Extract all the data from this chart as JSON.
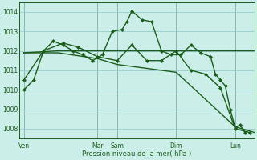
{
  "background_color": "#cceee8",
  "grid_color": "#99cccc",
  "line_color": "#1a5c1a",
  "xlabel": "Pression niveau de la mer( hPa )",
  "ylim": [
    1007.5,
    1014.5
  ],
  "yticks": [
    1008,
    1009,
    1010,
    1011,
    1012,
    1013,
    1014
  ],
  "xlim": [
    0,
    24
  ],
  "day_labels": [
    "Ven",
    "",
    "Mar",
    "Sam",
    "",
    "Dim",
    "",
    "Lun"
  ],
  "day_positions": [
    0.5,
    4,
    8,
    10,
    13,
    16,
    19,
    22
  ],
  "vline_positions": [
    0.5,
    8,
    10,
    16,
    22
  ],
  "series": [
    {
      "x": [
        0.5,
        1.5,
        2.5,
        3.5,
        4.5,
        5.5,
        6.5,
        7.5,
        8.5,
        9.5,
        10.5,
        11.0,
        11.5,
        12.5,
        13.5,
        14.5,
        15.5,
        16.5,
        17.5,
        18.5,
        19.5,
        20.0,
        20.5,
        21.0,
        21.5,
        22.0,
        22.5,
        23.0
      ],
      "y": [
        1010.0,
        1010.5,
        1012.0,
        1012.5,
        1012.3,
        1012.0,
        1011.8,
        1011.5,
        1011.8,
        1013.0,
        1013.1,
        1013.5,
        1014.05,
        1013.6,
        1013.5,
        1012.0,
        1011.8,
        1011.8,
        1012.3,
        1011.9,
        1011.7,
        1010.8,
        1010.5,
        1010.2,
        1009.0,
        1008.05,
        1008.2,
        1007.8
      ],
      "has_markers": true,
      "lw": 1.0
    },
    {
      "x": [
        0.5,
        4.0,
        8.0,
        10.0,
        13.0,
        16.0,
        19.0,
        22.0,
        24.0
      ],
      "y": [
        1011.9,
        1012.0,
        1012.0,
        1012.0,
        1012.0,
        1012.0,
        1012.0,
        1012.0,
        1012.0
      ],
      "has_markers": false,
      "lw": 1.0
    },
    {
      "x": [
        0.5,
        4.0,
        8.0,
        10.0,
        13.0,
        16.0,
        19.0,
        22.0,
        24.0
      ],
      "y": [
        1011.9,
        1011.9,
        1011.6,
        1011.3,
        1011.1,
        1010.9,
        1009.5,
        1008.1,
        1007.8
      ],
      "has_markers": false,
      "lw": 1.0
    },
    {
      "x": [
        0.5,
        2.5,
        4.5,
        6.0,
        8.0,
        10.0,
        11.5,
        13.0,
        14.5,
        16.0,
        17.5,
        19.0,
        20.5,
        22.0,
        23.5
      ],
      "y": [
        1010.5,
        1012.0,
        1012.4,
        1012.2,
        1011.7,
        1011.5,
        1012.3,
        1011.5,
        1011.5,
        1012.0,
        1011.0,
        1010.8,
        1010.1,
        1008.0,
        1007.8
      ],
      "has_markers": true,
      "lw": 1.0
    }
  ]
}
